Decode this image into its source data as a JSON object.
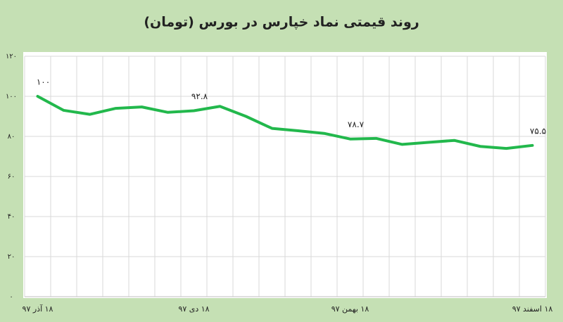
{
  "chart_data": {
    "type": "line",
    "title": "روند قیمتی نماد خپارس در بورس (تومان)",
    "categories": [
      "۱۸ آذر ۹۷",
      null,
      null,
      null,
      null,
      null,
      "۱۸ دی ۹۷",
      null,
      null,
      null,
      null,
      null,
      "۱۸ بهمن ۹۷",
      null,
      null,
      null,
      null,
      null,
      null,
      "۱۸ اسفند ۹۷"
    ],
    "series": [
      {
        "name": "خپارس",
        "color": "#22b84c",
        "values": [
          100,
          93,
          91,
          94,
          94.7,
          92,
          92.8,
          95,
          90,
          84,
          82.8,
          81.5,
          78.7,
          79,
          76,
          77,
          78,
          75,
          74,
          75.5
        ],
        "value_labels": [
          "۱۰۰",
          null,
          null,
          null,
          null,
          null,
          "۹۲.۸",
          null,
          null,
          null,
          null,
          null,
          "۷۸.۷",
          null,
          null,
          null,
          null,
          null,
          null,
          "۷۵.۵"
        ]
      }
    ],
    "ylim": [
      0,
      120
    ],
    "yticks": [
      {
        "value": 0,
        "label": "۰"
      },
      {
        "value": 20,
        "label": "۲۰"
      },
      {
        "value": 40,
        "label": "۴۰"
      },
      {
        "value": 60,
        "label": "۶۰"
      },
      {
        "value": 80,
        "label": "۸۰"
      },
      {
        "value": 100,
        "label": "۱۰۰"
      },
      {
        "value": 120,
        "label": "۱۲۰"
      }
    ],
    "grid": true
  }
}
